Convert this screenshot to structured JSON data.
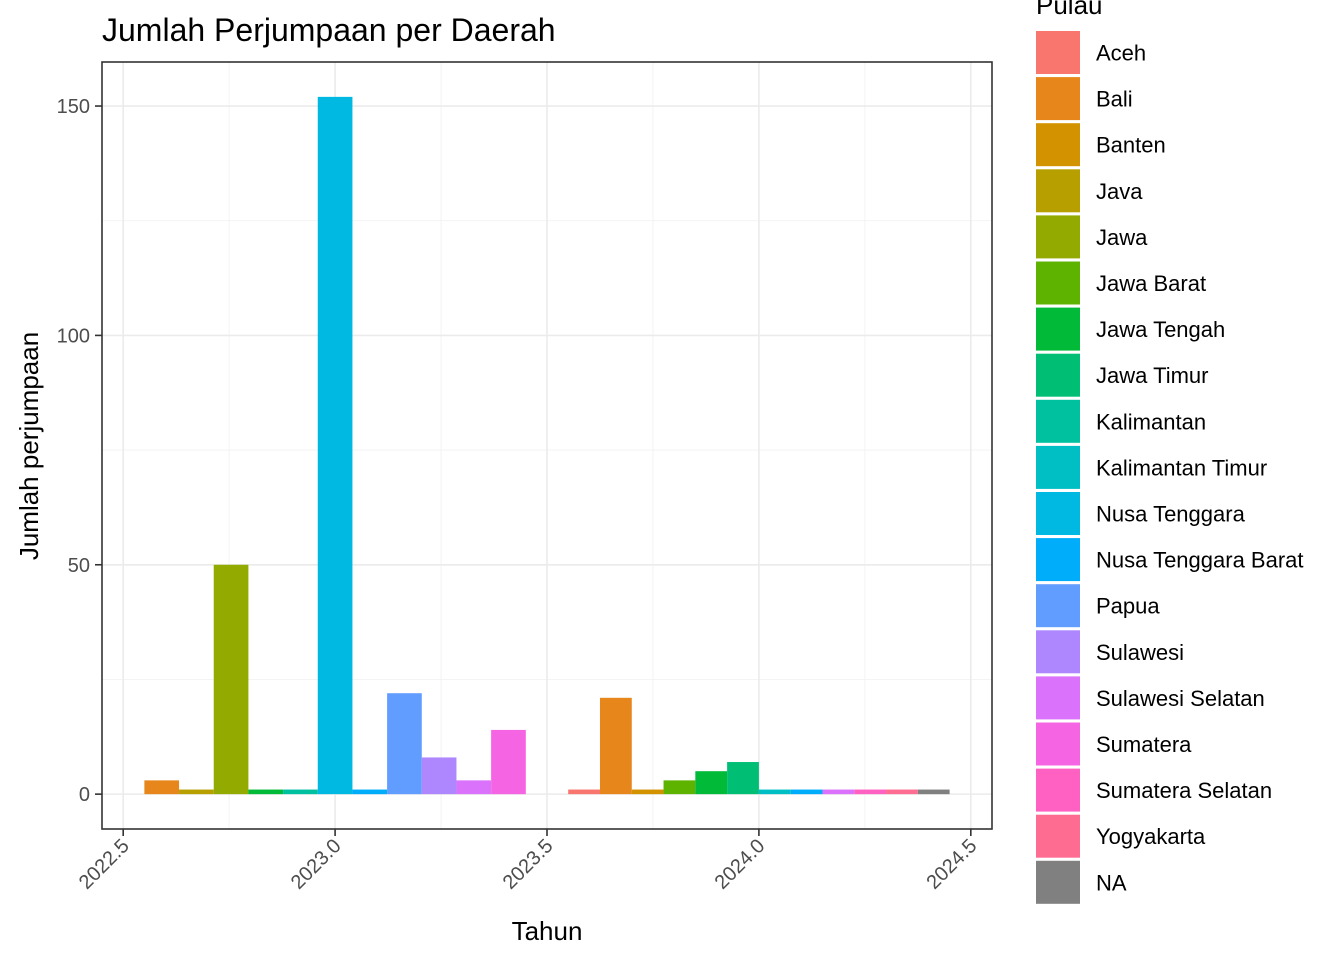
{
  "chart_data": {
    "type": "bar",
    "title": "Jumlah Perjumpaan per Daerah",
    "xlabel": "Tahun",
    "ylabel": "Jumlah perjumpaan",
    "xlim": [
      2022.45,
      2024.55
    ],
    "ylim": [
      -7.6,
      159.6
    ],
    "x_ticks": [
      2022.5,
      2023.0,
      2023.5,
      2024.0,
      2024.5
    ],
    "x_tick_labels": [
      "2022.5",
      "2023.0",
      "2023.5",
      "2024.0",
      "2024.5"
    ],
    "y_ticks": [
      0,
      50,
      100,
      150
    ],
    "y_tick_labels": [
      "0",
      "50",
      "100",
      "150"
    ],
    "grid": true,
    "legend_title": "Pulau",
    "legend_position": "right",
    "groups": [
      {
        "x": 2023,
        "bars": [
          {
            "name": "Bali",
            "value": 3
          },
          {
            "name": "Java",
            "value": 1
          },
          {
            "name": "Jawa",
            "value": 50
          },
          {
            "name": "Jawa Tengah",
            "value": 1
          },
          {
            "name": "Kalimantan",
            "value": 1
          },
          {
            "name": "Nusa Tenggara",
            "value": 152
          },
          {
            "name": "Nusa Tenggara Barat",
            "value": 1
          },
          {
            "name": "Papua",
            "value": 22
          },
          {
            "name": "Sulawesi",
            "value": 8
          },
          {
            "name": "Sulawesi Selatan",
            "value": 3
          },
          {
            "name": "Sumatera",
            "value": 14
          }
        ]
      },
      {
        "x": 2024,
        "bars": [
          {
            "name": "Aceh",
            "value": 1
          },
          {
            "name": "Bali",
            "value": 21
          },
          {
            "name": "Banten",
            "value": 1
          },
          {
            "name": "Jawa Barat",
            "value": 3
          },
          {
            "name": "Jawa Tengah",
            "value": 5
          },
          {
            "name": "Jawa Timur",
            "value": 7
          },
          {
            "name": "Kalimantan Timur",
            "value": 1
          },
          {
            "name": "Nusa Tenggara Barat",
            "value": 1
          },
          {
            "name": "Sulawesi Selatan",
            "value": 1
          },
          {
            "name": "Sumatera Selatan",
            "value": 1
          },
          {
            "name": "Yogyakarta",
            "value": 1
          },
          {
            "name": "NA",
            "value": 1
          }
        ]
      }
    ],
    "legend": [
      {
        "name": "Aceh",
        "color": "#F8766D"
      },
      {
        "name": "Bali",
        "color": "#E7861B"
      },
      {
        "name": "Banten",
        "color": "#D39200"
      },
      {
        "name": "Java",
        "color": "#B79F00"
      },
      {
        "name": "Jawa",
        "color": "#93AA00"
      },
      {
        "name": "Jawa Barat",
        "color": "#5EB300"
      },
      {
        "name": "Jawa Tengah",
        "color": "#00BA38"
      },
      {
        "name": "Jawa Timur",
        "color": "#00BF74"
      },
      {
        "name": "Kalimantan",
        "color": "#00C19F"
      },
      {
        "name": "Kalimantan Timur",
        "color": "#00BFC4"
      },
      {
        "name": "Nusa Tenggara",
        "color": "#00B9E3"
      },
      {
        "name": "Nusa Tenggara Barat",
        "color": "#00ADFA"
      },
      {
        "name": "Papua",
        "color": "#619CFF"
      },
      {
        "name": "Sulawesi",
        "color": "#AE87FF"
      },
      {
        "name": "Sulawesi Selatan",
        "color": "#DB72FB"
      },
      {
        "name": "Sumatera",
        "color": "#F564E3"
      },
      {
        "name": "Sumatera Selatan",
        "color": "#FF61C3"
      },
      {
        "name": "Yogyakarta",
        "color": "#FF6C91"
      },
      {
        "name": "NA",
        "color": "#808080"
      }
    ]
  }
}
